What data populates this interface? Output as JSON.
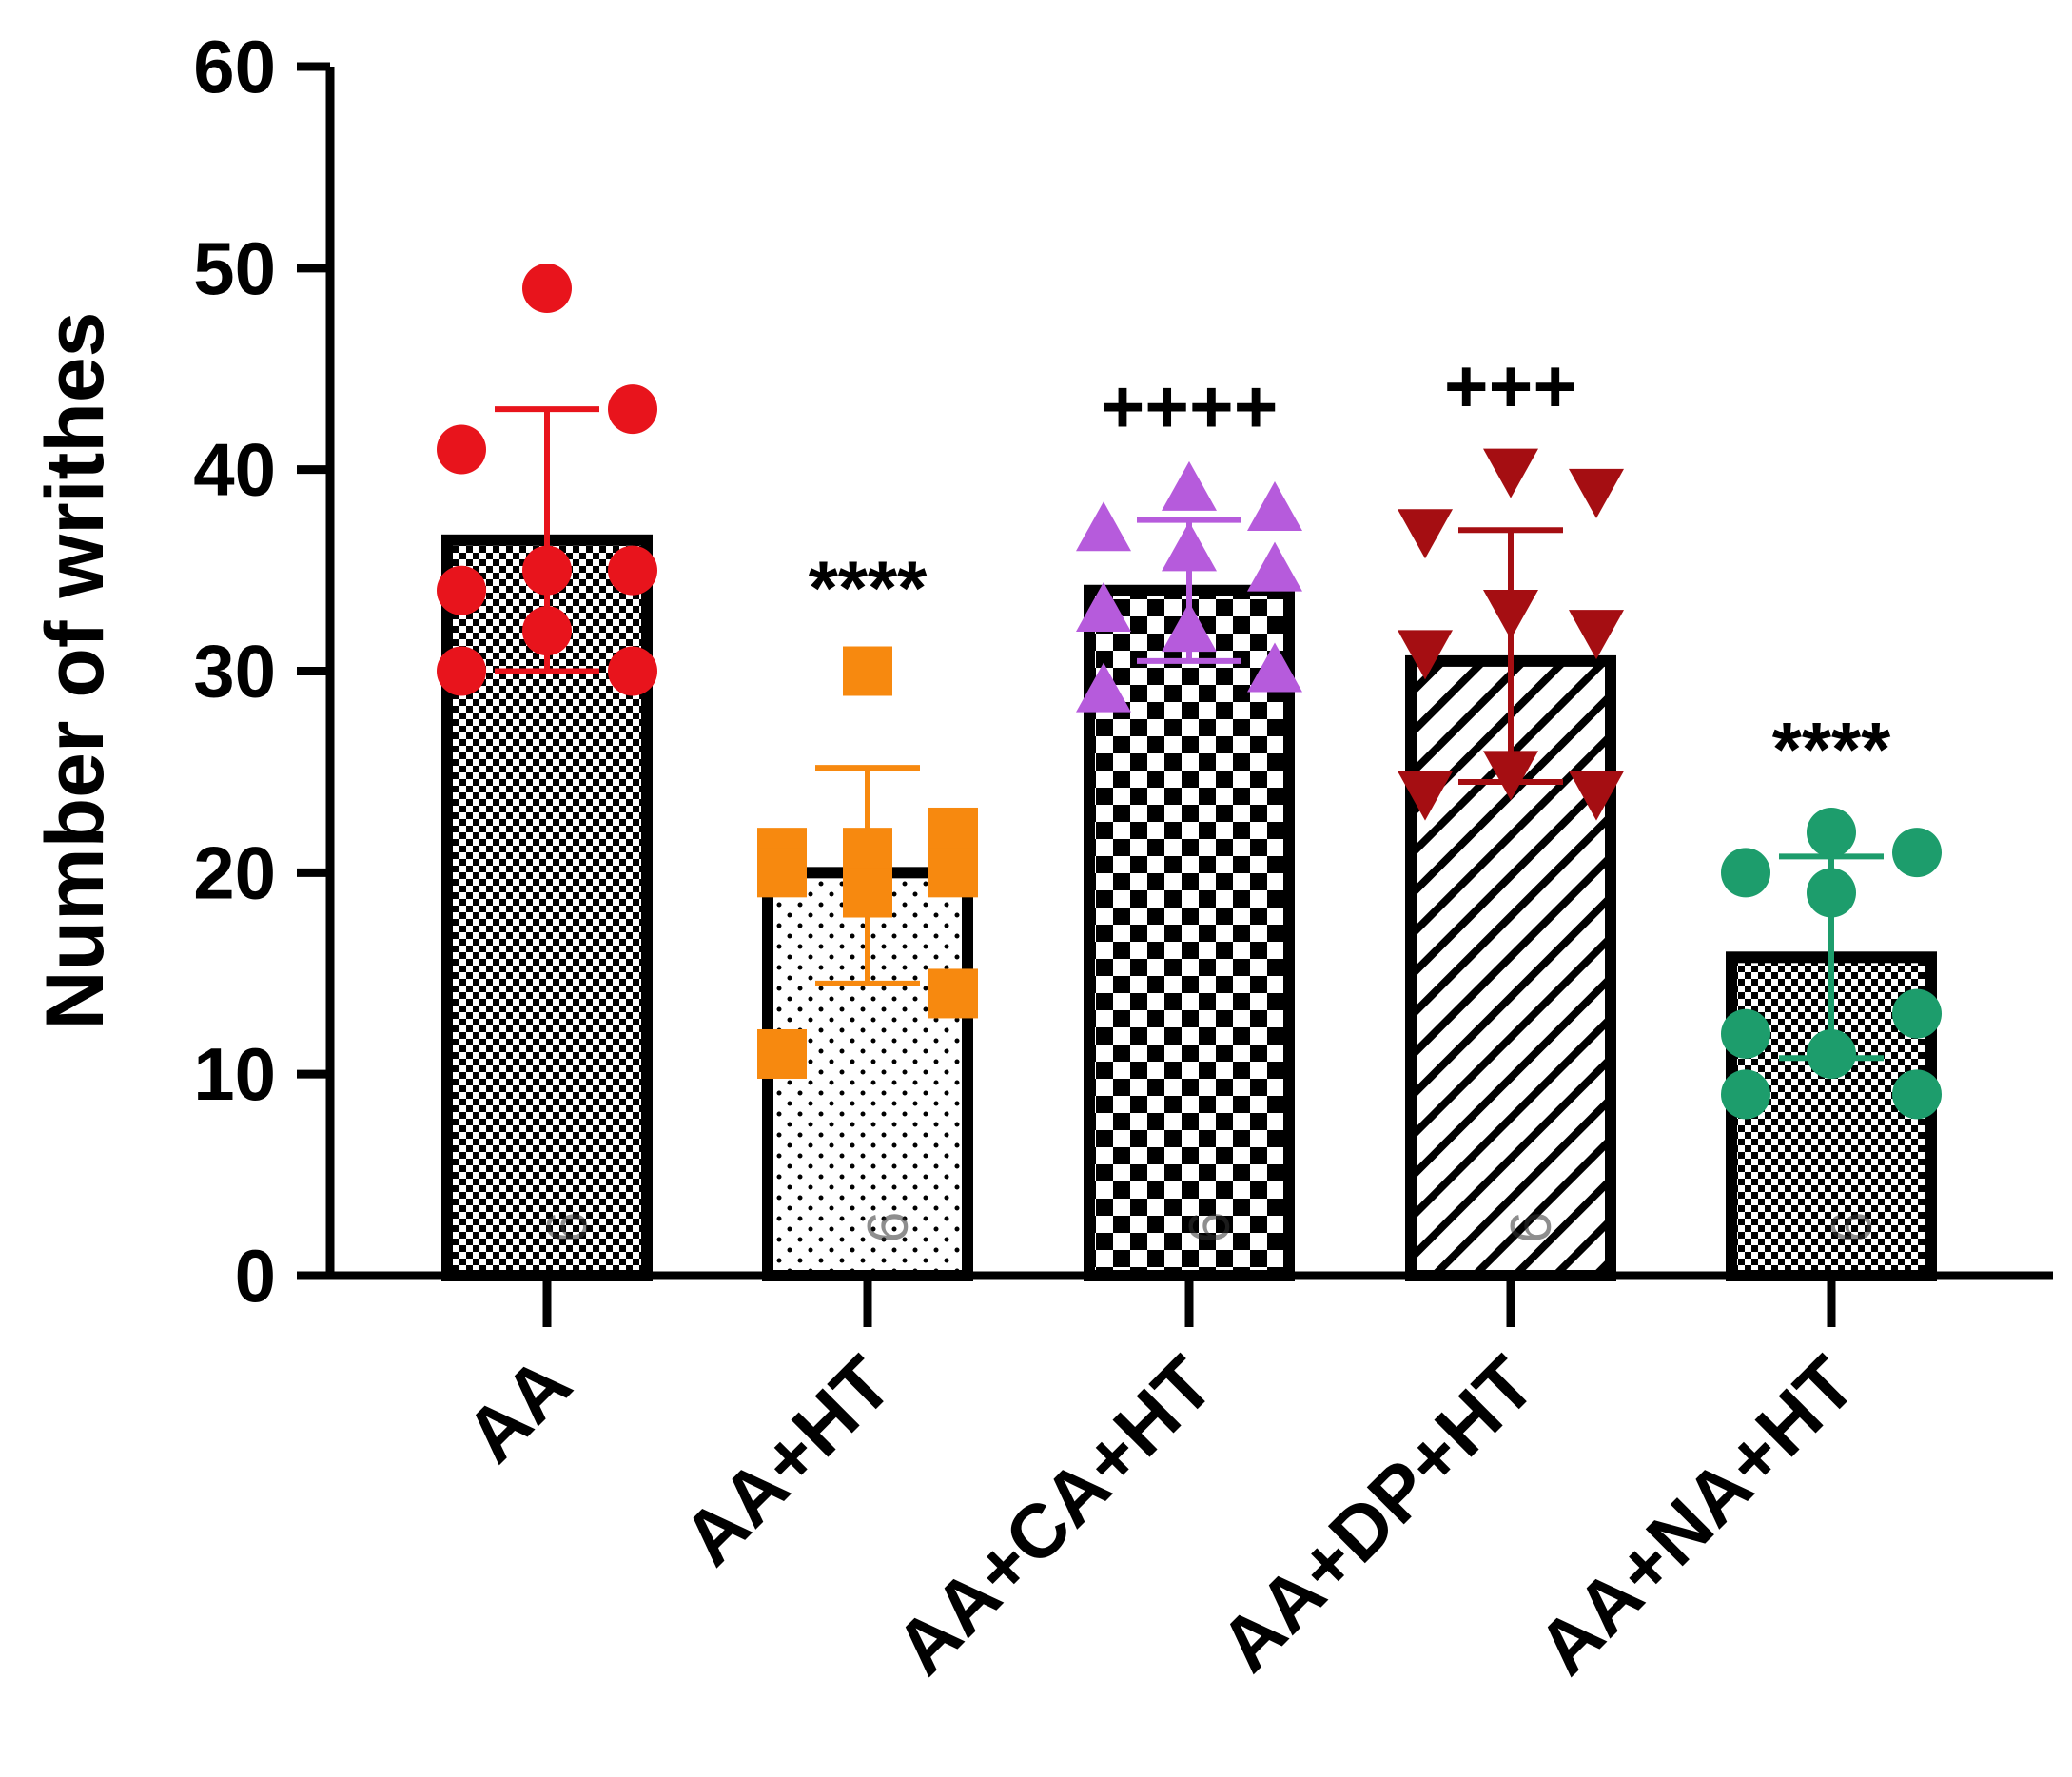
{
  "chart_data": {
    "type": "bar",
    "ylabel": "Number of writhes",
    "xlabel": "",
    "title": "",
    "ylim": [
      0,
      60
    ],
    "yticks": [
      0,
      10,
      20,
      30,
      40,
      50,
      60
    ],
    "categories": [
      "AA",
      "AA+HT",
      "AA+CA+HT",
      "AA+DP+HT",
      "AA+NA+HT"
    ],
    "bars": [
      {
        "category": "AA",
        "mean": 36.5,
        "err_low": 30.0,
        "err_high": 43.0,
        "n_label": "9",
        "significance": "",
        "pattern": "fine-check",
        "point_color": "#e8141c",
        "marker": "circle",
        "points": [
          49,
          43,
          41,
          35,
          35,
          34,
          32,
          30,
          30
        ]
      },
      {
        "category": "AA+HT",
        "mean": 20.0,
        "err_low": 14.5,
        "err_high": 25.2,
        "n_label": "9",
        "significance": "****",
        "pattern": "dots",
        "point_color": "#f7890f",
        "marker": "square",
        "points": [
          30,
          22,
          21,
          21,
          20,
          20,
          19,
          14,
          11
        ]
      },
      {
        "category": "AA+CA+HT",
        "mean": 34.0,
        "err_low": 30.5,
        "err_high": 37.5,
        "n_label": "9",
        "significance": "++++",
        "pattern": "big-check",
        "point_color": "#b65bdc",
        "marker": "triangle-up",
        "points": [
          39,
          38,
          37,
          36,
          35,
          33,
          32,
          30,
          29
        ]
      },
      {
        "category": "AA+DP+HT",
        "mean": 30.5,
        "err_low": 24.5,
        "err_high": 37.0,
        "n_label": "9",
        "significance": "+++",
        "pattern": "diagonal",
        "point_color": "#a50e12",
        "marker": "triangle-down",
        "points": [
          40,
          39,
          37,
          33,
          32,
          31,
          25,
          24,
          24
        ]
      },
      {
        "category": "AA+NA+HT",
        "mean": 15.8,
        "err_low": 10.8,
        "err_high": 20.8,
        "n_label": "9",
        "significance": "****",
        "pattern": "fine-check",
        "point_color": "#1d9d6c",
        "marker": "circle",
        "points": [
          22,
          21,
          20,
          19,
          13,
          12,
          11,
          9,
          9
        ]
      }
    ]
  }
}
